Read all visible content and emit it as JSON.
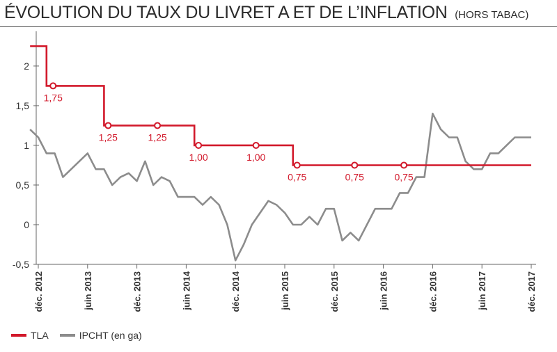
{
  "title": "ÉVOLUTION DU TAUX DU LIVRET A ET DE L’INFLATION",
  "subtitle": "(HORS TABAC)",
  "legend": [
    {
      "label": "TLA",
      "color": "#d2192b"
    },
    {
      "label": "IPCHT (en ga)",
      "color": "#8c8c8c"
    }
  ],
  "chart_data": {
    "type": "line",
    "ylim": [
      -0.5,
      2.35
    ],
    "y_ticks": [
      -0.5,
      0,
      0.5,
      1,
      1.5,
      2
    ],
    "y_tick_labels": [
      "-0,5",
      "0",
      "0,5",
      "1",
      "1,5",
      "2"
    ],
    "x_range": [
      0,
      60
    ],
    "x_ticks": [
      {
        "x": 0,
        "label": "déc. 2012"
      },
      {
        "x": 6,
        "label": "juin 2013"
      },
      {
        "x": 12,
        "label": "déc. 2013"
      },
      {
        "x": 18,
        "label": "juin 2014"
      },
      {
        "x": 24,
        "label": "déc. 2014"
      },
      {
        "x": 30,
        "label": "juin 2015"
      },
      {
        "x": 36,
        "label": "déc. 2015"
      },
      {
        "x": 42,
        "label": "juin 2016"
      },
      {
        "x": 48,
        "label": "déc. 2016"
      },
      {
        "x": 54,
        "label": "juin 2017"
      },
      {
        "x": 60,
        "label": "déc. 2017"
      }
    ],
    "series": [
      {
        "name": "TLA",
        "color": "#d2192b",
        "step": true,
        "points": [
          [
            -1,
            2.25
          ],
          [
            1,
            2.25
          ],
          [
            1,
            1.75
          ],
          [
            8,
            1.75
          ],
          [
            8,
            1.25
          ],
          [
            19,
            1.25
          ],
          [
            19,
            1.0
          ],
          [
            31,
            1.0
          ],
          [
            31,
            0.75
          ],
          [
            60,
            0.75
          ]
        ],
        "markers": [
          {
            "x": 1.8,
            "y": 1.75,
            "label": "1,75"
          },
          {
            "x": 8.5,
            "y": 1.25,
            "label": "1,25"
          },
          {
            "x": 14.5,
            "y": 1.25,
            "label": "1,25"
          },
          {
            "x": 19.5,
            "y": 1.0,
            "label": "1,00"
          },
          {
            "x": 26.5,
            "y": 1.0,
            "label": "1,00"
          },
          {
            "x": 31.5,
            "y": 0.75,
            "label": "0,75"
          },
          {
            "x": 38.5,
            "y": 0.75,
            "label": "0,75"
          },
          {
            "x": 44.5,
            "y": 0.75,
            "label": "0,75"
          }
        ]
      },
      {
        "name": "IPCHT (en ga)",
        "color": "#8c8c8c",
        "x": [
          -1,
          0,
          1,
          2,
          3,
          4,
          5,
          6,
          7,
          8,
          9,
          10,
          11,
          12,
          13,
          14,
          15,
          16,
          17,
          18,
          19,
          20,
          21,
          22,
          23,
          24,
          25,
          26,
          27,
          28,
          29,
          30,
          31,
          32,
          33,
          34,
          35,
          36,
          37,
          38,
          39,
          40,
          41,
          42,
          43,
          44,
          45,
          46,
          47,
          48,
          49,
          50,
          51,
          52,
          53,
          54,
          55,
          56,
          57,
          58,
          59,
          60
        ],
        "y": [
          1.2,
          1.1,
          0.9,
          0.9,
          0.6,
          0.7,
          0.8,
          0.9,
          0.7,
          0.7,
          0.5,
          0.6,
          0.65,
          0.55,
          0.8,
          0.5,
          0.6,
          0.55,
          0.35,
          0.35,
          0.35,
          0.25,
          0.35,
          0.25,
          0.0,
          -0.45,
          -0.25,
          0.0,
          0.15,
          0.3,
          0.25,
          0.15,
          0.0,
          0.0,
          0.1,
          0.0,
          0.2,
          0.2,
          -0.2,
          -0.1,
          -0.2,
          0.0,
          0.2,
          0.2,
          0.2,
          0.4,
          0.4,
          0.6,
          0.6,
          1.4,
          1.2,
          1.1,
          1.1,
          0.8,
          0.7,
          0.7,
          0.9,
          0.9,
          1.0,
          1.1,
          1.1,
          1.1
        ]
      }
    ]
  }
}
